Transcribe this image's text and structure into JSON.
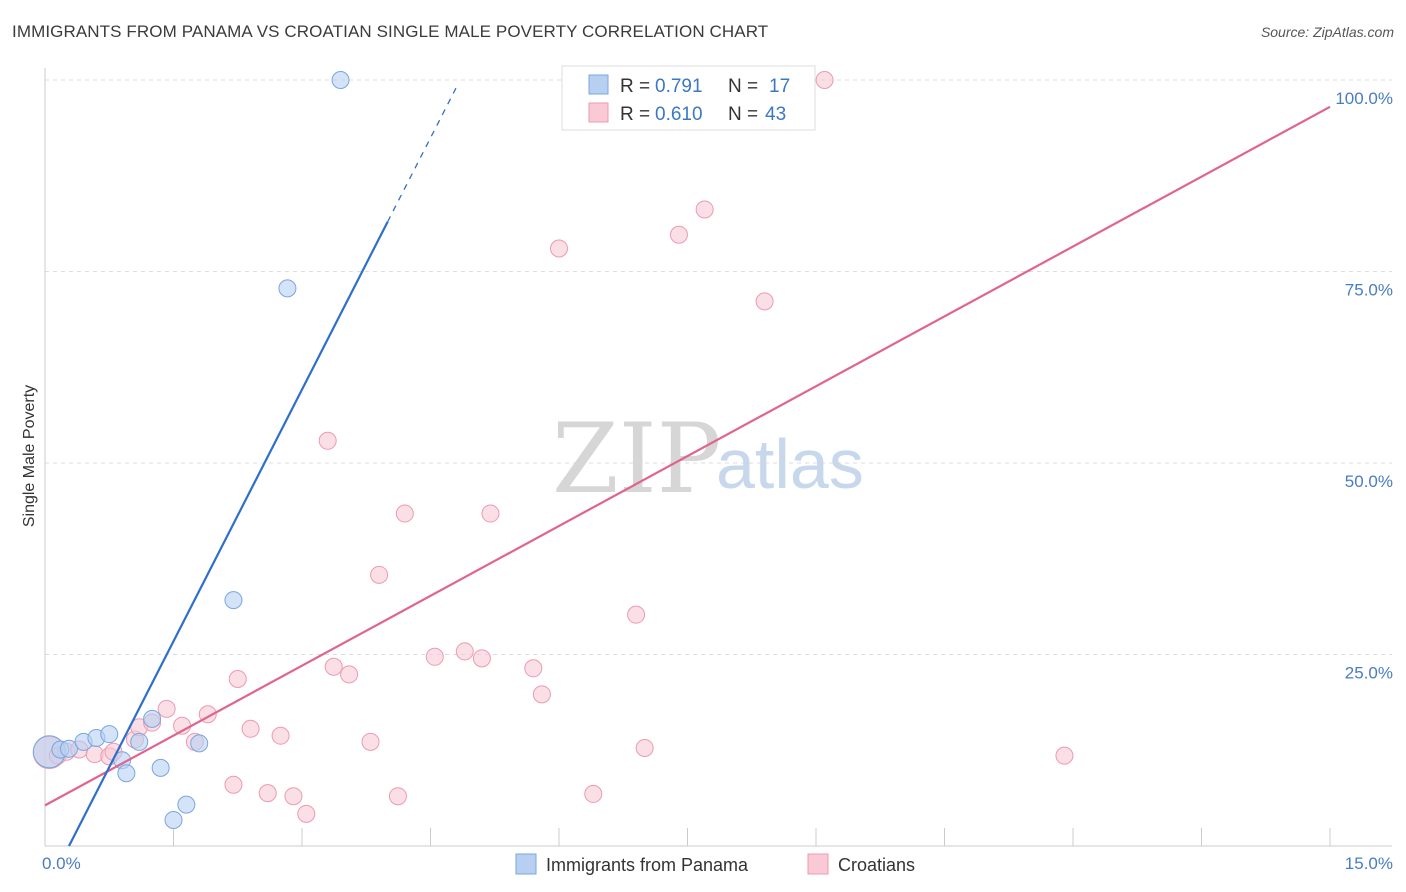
{
  "title": "IMMIGRANTS FROM PANAMA VS CROATIAN SINGLE MALE POVERTY CORRELATION CHART",
  "source": "Source: ZipAtlas.com",
  "watermark": {
    "zip": "ZIP",
    "atlas": "atlas"
  },
  "colors": {
    "panama_fill": "#b7d0f2",
    "panama_stroke": "#7aa6df",
    "panama_line": "#2f6fcc",
    "croatian_fill": "#f9c9d6",
    "croatian_stroke": "#ec9ab2",
    "croatian_line": "#e0648c",
    "axis_label": "#4a7cc4",
    "grid": "#dddddd"
  },
  "legend": {
    "rows": [
      {
        "r_label": "R =",
        "r_value": "0.791",
        "n_label": "N =",
        "n_value": "17"
      },
      {
        "r_label": "R =",
        "r_value": "0.610",
        "n_label": "N =",
        "n_value": "43"
      }
    ]
  },
  "bottom_legend": [
    "Immigrants from Panama",
    "Croatians"
  ],
  "chart_data": {
    "type": "scatter",
    "title": "IMMIGRANTS FROM PANAMA VS CROATIAN SINGLE MALE POVERTY CORRELATION CHART",
    "xlabel": "",
    "ylabel": "Single Male Poverty",
    "xlim": [
      0,
      15
    ],
    "ylim": [
      0,
      100
    ],
    "x_tick_labels": [
      "0.0%",
      "15.0%"
    ],
    "y_ticks": [
      25,
      50,
      75,
      100
    ],
    "y_tick_labels": [
      "25.0%",
      "50.0%",
      "75.0%",
      "100.0%"
    ],
    "series": [
      {
        "name": "Immigrants from Panama",
        "r": 0.791,
        "n": 17,
        "points": [
          [
            0.05,
            12.3
          ],
          [
            0.18,
            12.6
          ],
          [
            0.28,
            12.7
          ],
          [
            0.45,
            13.6
          ],
          [
            0.6,
            14.1
          ],
          [
            0.75,
            14.6
          ],
          [
            0.9,
            11.2
          ],
          [
            0.95,
            9.5
          ],
          [
            1.1,
            13.6
          ],
          [
            1.25,
            16.6
          ],
          [
            1.35,
            10.2
          ],
          [
            1.5,
            3.4
          ],
          [
            1.65,
            5.4
          ],
          [
            1.8,
            13.4
          ],
          [
            2.2,
            32.1
          ],
          [
            2.83,
            72.8
          ],
          [
            3.45,
            100
          ]
        ],
        "trend": {
          "x0": 0.28,
          "y0": 0.0,
          "x1": 4.0,
          "y1": 81.5,
          "dash_x_end": 4.8,
          "dash_y_end": 99.0
        }
      },
      {
        "name": "Croatians",
        "r": 0.61,
        "n": 43,
        "points": [
          [
            0.05,
            12.2
          ],
          [
            0.15,
            11.8
          ],
          [
            0.25,
            12.3
          ],
          [
            0.4,
            12.6
          ],
          [
            0.58,
            12.0
          ],
          [
            0.75,
            11.7
          ],
          [
            0.8,
            12.3
          ],
          [
            1.05,
            13.9
          ],
          [
            1.1,
            15.5
          ],
          [
            1.25,
            16.1
          ],
          [
            1.42,
            17.9
          ],
          [
            1.6,
            15.7
          ],
          [
            1.75,
            13.6
          ],
          [
            1.9,
            17.2
          ],
          [
            2.2,
            8.0
          ],
          [
            2.25,
            21.8
          ],
          [
            2.4,
            15.3
          ],
          [
            2.6,
            6.9
          ],
          [
            2.75,
            14.4
          ],
          [
            2.9,
            6.5
          ],
          [
            3.05,
            4.2
          ],
          [
            3.3,
            52.9
          ],
          [
            3.37,
            23.4
          ],
          [
            3.55,
            22.4
          ],
          [
            3.8,
            13.6
          ],
          [
            3.9,
            35.4
          ],
          [
            4.12,
            6.5
          ],
          [
            4.2,
            43.4
          ],
          [
            4.55,
            24.7
          ],
          [
            4.9,
            25.4
          ],
          [
            5.1,
            24.5
          ],
          [
            5.2,
            43.4
          ],
          [
            5.7,
            23.2
          ],
          [
            5.8,
            19.8
          ],
          [
            6.0,
            78.0
          ],
          [
            6.4,
            6.8
          ],
          [
            6.9,
            30.2
          ],
          [
            7.0,
            12.8
          ],
          [
            7.4,
            79.8
          ],
          [
            7.7,
            83.1
          ],
          [
            8.4,
            71.1
          ],
          [
            9.1,
            100
          ],
          [
            11.9,
            11.8
          ]
        ],
        "trend": {
          "x0": 0.0,
          "y0": 5.3,
          "x1": 15.0,
          "y1": 96.5
        }
      }
    ]
  }
}
